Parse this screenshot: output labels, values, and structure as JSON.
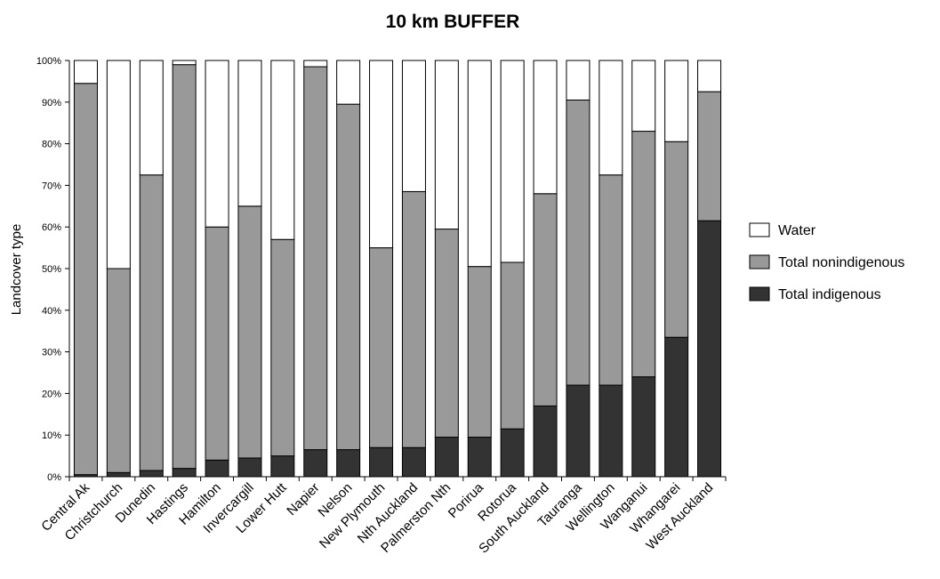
{
  "chart_data": {
    "type": "bar",
    "stacked": true,
    "normalized_percent": true,
    "title": "10 km BUFFER",
    "xlabel": "",
    "ylabel": "Landcover type",
    "ylim": [
      0,
      100
    ],
    "yticks": [
      "0%",
      "10%",
      "20%",
      "30%",
      "40%",
      "50%",
      "60%",
      "70%",
      "80%",
      "90%",
      "100%"
    ],
    "grid": false,
    "legend_position": "right",
    "categories": [
      "Central Ak",
      "Christchurch",
      "Dunedin",
      "Hastings",
      "Hamilton",
      "Invercargill",
      "Lower Hutt",
      "Napier",
      "Nelson",
      "New Plymouth",
      "Nth Auckland",
      "Palmerston Nth",
      "Porirua",
      "Rotorua",
      "South Auckland",
      "Tauranga",
      "Wellington",
      "Wanganui",
      "Whangarei",
      "West Auckland"
    ],
    "series": [
      {
        "name": "Total indigenous",
        "color": "#333333",
        "values": [
          0.5,
          1,
          1.5,
          2,
          4,
          4.5,
          5,
          6.5,
          6.5,
          7,
          7,
          9.5,
          9.5,
          11.5,
          17,
          22,
          22,
          24,
          33.5,
          61.5
        ]
      },
      {
        "name": "Total nonindigenous",
        "color": "#999999",
        "values": [
          94,
          49,
          71,
          97,
          56,
          60.5,
          52,
          92,
          83,
          48,
          61.5,
          50,
          41,
          40,
          51,
          68.5,
          50.5,
          59,
          47,
          31
        ]
      },
      {
        "name": "Water",
        "color": "#ffffff",
        "values": [
          5.5,
          50,
          27.5,
          1,
          40,
          35,
          43,
          1.5,
          10.5,
          45,
          31.5,
          40.5,
          49.5,
          48.5,
          32,
          9.5,
          27.5,
          17,
          19.5,
          7.5
        ]
      }
    ],
    "legend_order": [
      "Water",
      "Total nonindigenous",
      "Total indigenous"
    ]
  }
}
